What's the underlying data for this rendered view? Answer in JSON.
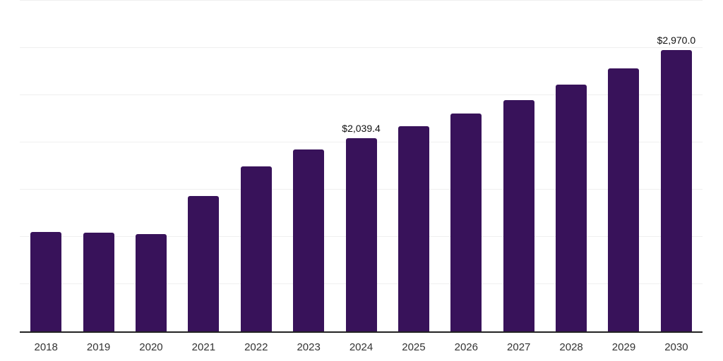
{
  "chart_data": {
    "type": "bar",
    "title": "",
    "xlabel": "",
    "ylabel": "",
    "categories": [
      "2018",
      "2019",
      "2020",
      "2021",
      "2022",
      "2023",
      "2024",
      "2025",
      "2026",
      "2027",
      "2028",
      "2029",
      "2030"
    ],
    "values": [
      1050,
      1040,
      1025,
      1433,
      1746,
      1923,
      2039.4,
      2164,
      2300,
      2442,
      2606,
      2781,
      2970
    ],
    "data_labels": {
      "2024": "$2,039.4",
      "2030": "$2,970.0"
    },
    "ylim": [
      0,
      3500
    ],
    "gridline_step": 500,
    "grid": true,
    "legend": false,
    "style": {
      "bar_color": "#38125A",
      "axis_line_color": "#222222",
      "gridline_color": "#efefef",
      "value_label_color": "#111111",
      "tick_label_color": "#333333",
      "background": "#ffffff"
    }
  }
}
